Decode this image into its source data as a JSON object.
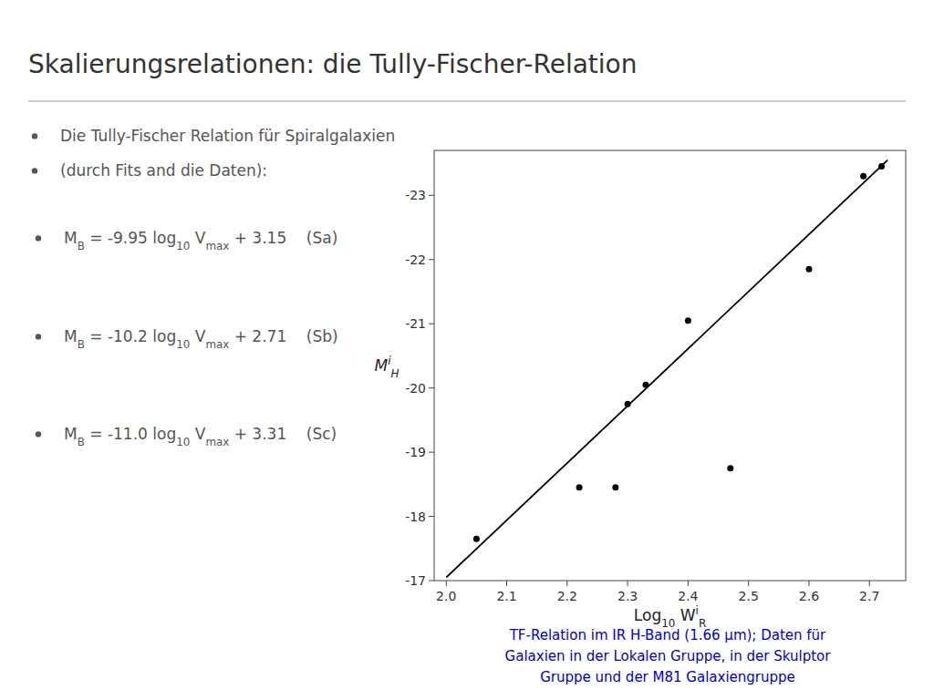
{
  "chart_data": {
    "type": "scatter",
    "title": "Skalierungsrelationen: die Tully-Fischer-Relation",
    "annotations": [
      "Die Tully-Fischer Relation für Spiralgalaxien",
      "(durch Fits and die Daten):",
      "MB = -9.95 log10 Vmax + 3.15    (Sa)",
      "MB = -10.2 log10 Vmax + 2.71    (Sb)",
      "MB = -11.0 log10 Vmax + 3.31    (Sc)",
      "TF-Relation im IR H-Band (1.66 µm); Daten für\nGalaxien in der Lokalen Gruppe, in der Skulptor\nGruppe und der M81 Galaxiengruppe"
    ],
    "x_label": "Log10 WiR",
    "y_label": "MiH",
    "series": [
      {
        "type": "scatter",
        "color": "#000000",
        "x": [
          2.05,
          2.22,
          2.28,
          2.3,
          2.33,
          2.4,
          2.47,
          2.6,
          2.69,
          2.72
        ],
        "values": [
          -17.65,
          -18.45,
          -18.45,
          -19.75,
          -20.05,
          -21.05,
          -18.75,
          -21.85,
          -23.3,
          -23.45
        ]
      },
      {
        "type": "line",
        "color": "#000000",
        "x": [
          2.0,
          2.73
        ],
        "values": [
          -17.05,
          -23.55
        ]
      }
    ],
    "xlim": [
      1.98,
      2.76
    ],
    "ylim": [
      -17.0,
      -23.7
    ],
    "xticks": [
      {
        "value": 2.0,
        "label": "2.0"
      },
      2.1,
      2.2,
      2.3,
      2.4,
      2.5,
      2.6,
      2.7
    ],
    "yticks": [
      -17,
      -18,
      -19,
      -20,
      -21,
      -22,
      -23
    ],
    "grid": false
  }
}
